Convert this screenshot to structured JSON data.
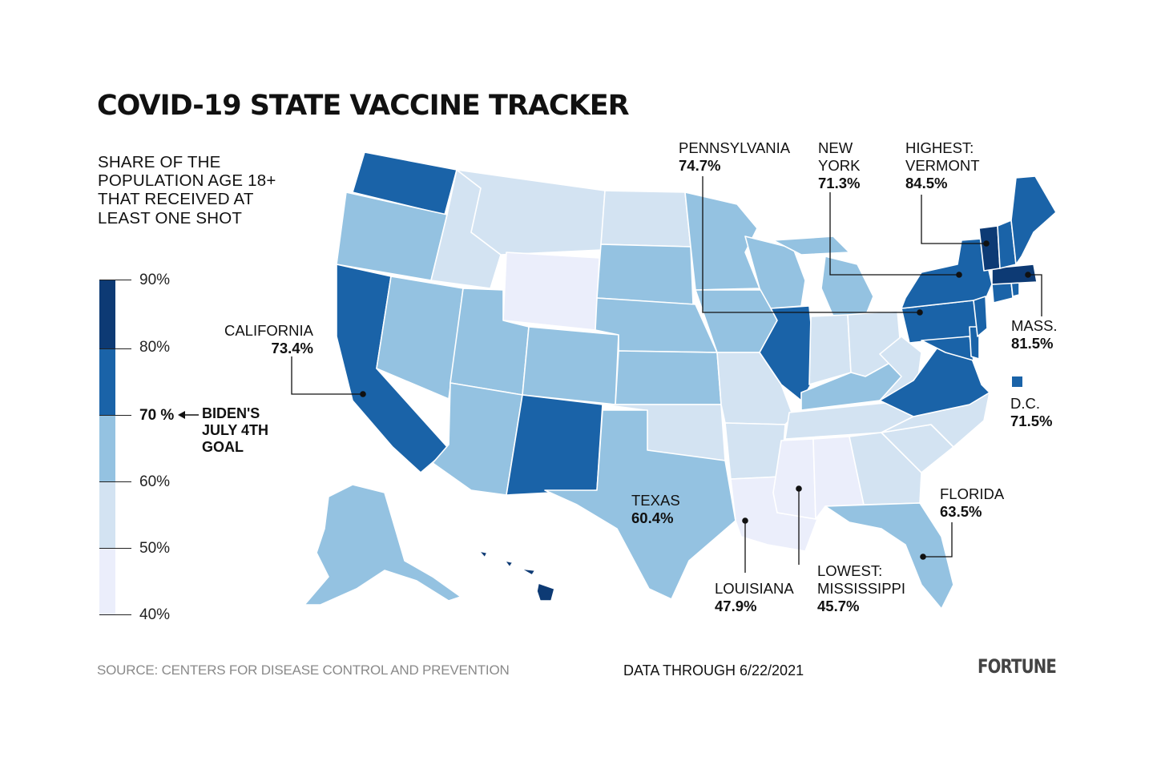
{
  "title": "COVID-19 STATE VACCINE TRACKER",
  "subtitle": "SHARE OF THE POPULATION AGE 18+ THAT RECEIVED AT LEAST ONE SHOT",
  "legend": {
    "ticks": [
      "90%",
      "80%",
      "70 %",
      "60%",
      "50%",
      "40%"
    ],
    "bins": [
      {
        "range": "80-90%",
        "color": "#0d3a74"
      },
      {
        "range": "70-80%",
        "color": "#1a63a8"
      },
      {
        "range": "60-70%",
        "color": "#94c2e1"
      },
      {
        "range": "50-60%",
        "color": "#d3e3f2"
      },
      {
        "range": "40-50%",
        "color": "#ebeefb"
      }
    ],
    "goal_label": "BIDEN'S JULY 4TH GOAL",
    "goal_value": 70
  },
  "callouts": {
    "pennsylvania": {
      "name": "PENNSYLVANIA",
      "value": "74.7%"
    },
    "new_york": {
      "name": "NEW YORK",
      "value": "71.3%"
    },
    "vermont": {
      "name": "HIGHEST: VERMONT",
      "value": "84.5%"
    },
    "california": {
      "name": "CALIFORNIA",
      "value": "73.4%"
    },
    "mass": {
      "name": "MASS.",
      "value": "81.5%"
    },
    "dc": {
      "name": "D.C.",
      "value": "71.5%"
    },
    "texas": {
      "name": "TEXAS",
      "value": "60.4%"
    },
    "florida": {
      "name": "FLORIDA",
      "value": "63.5%"
    },
    "louisiana": {
      "name": "LOUISIANA",
      "value": "47.9%"
    },
    "mississippi": {
      "name": "LOWEST: MISSISSIPPI",
      "value": "45.7%"
    }
  },
  "footer": {
    "source": "SOURCE: CENTERS FOR DISEASE CONTROL AND PREVENTION",
    "data_through": "DATA THROUGH 6/22/2021",
    "brand": "FORTUNE"
  },
  "colors": {
    "dark_navy": "#0d3a74",
    "blue": "#1a63a8",
    "light_blue": "#94c2e1",
    "pale_blue": "#d3e3f2",
    "lavender": "#ebeefb"
  }
}
